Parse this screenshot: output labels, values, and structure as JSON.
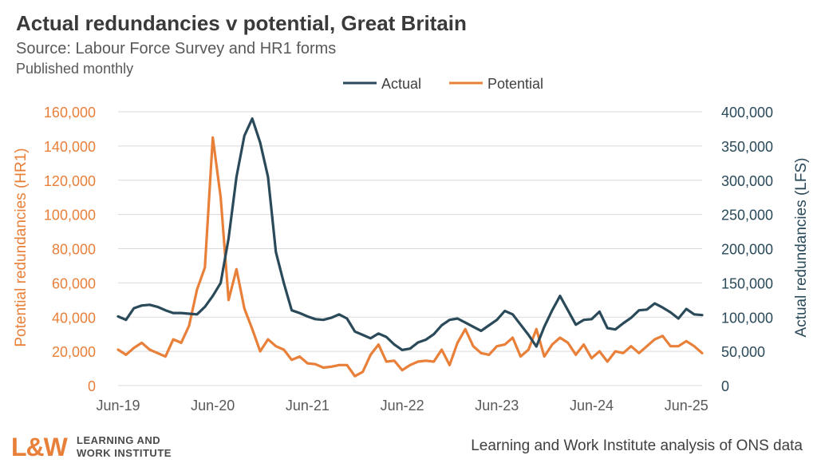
{
  "header": {
    "title": "Actual redundancies v potential, Great Britain",
    "subtitle": "Source: Labour Force Survey and HR1 forms",
    "note": "Published monthly"
  },
  "footer": {
    "logo_mark": "L&W",
    "logo_line1": "LEARNING AND",
    "logo_line2": "WORK INSTITUTE",
    "credit": "Learning and Work Institute analysis of ONS data"
  },
  "colors": {
    "actual": "#2a4a5a",
    "potential": "#e8803a",
    "grid": "#d9d9d9",
    "axis_text": "#595959"
  },
  "chart_data": {
    "type": "line",
    "title": "Actual redundancies v potential, Great Britain",
    "x_tick_labels": [
      "Jun-19",
      "Jun-20",
      "Jun-21",
      "Jun-22",
      "Jun-23",
      "Jun-24",
      "Jun-25"
    ],
    "x_start": "Jun-19",
    "x_end": "Jun-25",
    "legend_position": "top-center",
    "grid": true,
    "y_left": {
      "label": "Potential redundancies (HR1)",
      "min": 0,
      "max": 160000,
      "ticks": [
        "0",
        "20,000",
        "40,000",
        "60,000",
        "80,000",
        "100,000",
        "120,000",
        "140,000",
        "160,000"
      ]
    },
    "y_right": {
      "label": "Actual redundancies (LFS)",
      "min": 0,
      "max": 400000,
      "ticks": [
        "0",
        "50,000",
        "100,000",
        "150,000",
        "200,000",
        "250,000",
        "300,000",
        "350,000",
        "400,000"
      ]
    },
    "series": [
      {
        "name": "Actual",
        "axis": "right",
        "values": [
          101000,
          96000,
          113000,
          117000,
          118000,
          115000,
          110000,
          106000,
          106000,
          105000,
          104000,
          115000,
          131000,
          150000,
          215000,
          305000,
          365000,
          390000,
          355000,
          305000,
          195000,
          150000,
          110000,
          106000,
          101000,
          97000,
          96000,
          99000,
          104000,
          98000,
          79000,
          74000,
          69000,
          76000,
          71000,
          60000,
          52000,
          54000,
          63000,
          67000,
          75000,
          88000,
          96000,
          98000,
          92000,
          86000,
          80000,
          88000,
          96000,
          109000,
          104000,
          89000,
          74000,
          57000,
          86000,
          110000,
          131000,
          110000,
          89000,
          96000,
          97000,
          108000,
          84000,
          82000,
          91000,
          99000,
          110000,
          111000,
          120000,
          114000,
          107000,
          98000,
          112000,
          104000,
          103000
        ]
      },
      {
        "name": "Potential",
        "axis": "left",
        "values": [
          21000,
          18000,
          22000,
          25000,
          21000,
          19000,
          17000,
          27000,
          25000,
          35000,
          56000,
          69000,
          145000,
          110000,
          50000,
          68000,
          45000,
          33000,
          20000,
          27000,
          23000,
          21000,
          15000,
          17000,
          13000,
          12500,
          10500,
          11000,
          12000,
          12000,
          5500,
          8000,
          18000,
          24000,
          14000,
          14500,
          9000,
          12000,
          14000,
          14500,
          14000,
          21000,
          12000,
          25000,
          33000,
          23000,
          19000,
          18000,
          23000,
          24000,
          28000,
          17000,
          21000,
          33000,
          17000,
          24000,
          28000,
          25000,
          18000,
          24000,
          16000,
          20000,
          14000,
          20000,
          19000,
          23000,
          19000,
          23000,
          27000,
          29000,
          23000,
          23000,
          26000,
          23000,
          19000
        ]
      }
    ]
  }
}
